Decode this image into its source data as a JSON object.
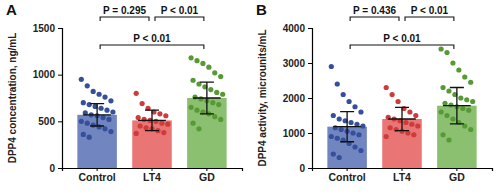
{
  "chart_data": [
    {
      "type": "bar",
      "title": "A",
      "y_label": "DPP4 concentration, ng/mL",
      "categories": [
        "Control",
        "LT4",
        "GD"
      ],
      "values": [
        570,
        510,
        750
      ],
      "error": [
        120,
        110,
        170
      ],
      "colors": [
        "#3a56a8",
        "#e0403f",
        "#5fa83a"
      ],
      "points": [
        [
          950,
          880,
          820,
          790,
          760,
          720,
          700,
          680,
          660,
          640,
          620,
          600,
          590,
          570,
          560,
          540,
          520,
          500,
          480,
          460,
          440,
          420,
          390,
          360,
          330
        ],
        [
          800,
          690,
          640,
          600,
          580,
          560,
          540,
          520,
          510,
          500,
          480,
          470,
          450,
          430,
          420,
          400,
          380,
          370
        ],
        [
          1180,
          1150,
          1120,
          1080,
          1020,
          980,
          940,
          900,
          870,
          840,
          810,
          790,
          760,
          740,
          720,
          700,
          680,
          650,
          620,
          600,
          580,
          550,
          520,
          480,
          420
        ]
      ],
      "ylim": [
        0,
        1500
      ],
      "yticks": [
        0,
        500,
        1000,
        1500
      ],
      "annotations": [
        {
          "text": "P = 0.295",
          "between": [
            "Control",
            "LT4"
          ]
        },
        {
          "text": "P < 0.01",
          "between": [
            "LT4",
            "GD"
          ]
        },
        {
          "text": "P < 0.01",
          "between": [
            "Control",
            "GD"
          ]
        }
      ]
    },
    {
      "type": "bar",
      "title": "B",
      "y_label": "DPP4 activity, microunits/mL",
      "categories": [
        "Control",
        "LT4",
        "GD"
      ],
      "values": [
        1180,
        1400,
        1780
      ],
      "error": [
        430,
        330,
        520
      ],
      "colors": [
        "#3a56a8",
        "#e0403f",
        "#5fa83a"
      ],
      "points": [
        [
          2900,
          2400,
          2100,
          1900,
          1750,
          1600,
          1500,
          1400,
          1350,
          1300,
          1250,
          1200,
          1150,
          1100,
          1050,
          1000,
          950,
          900,
          850,
          800,
          700,
          600,
          500,
          400,
          300
        ],
        [
          2300,
          2100,
          1900,
          1700,
          1600,
          1500,
          1450,
          1400,
          1350,
          1300,
          1250,
          1200,
          1150,
          1100,
          1050,
          1000,
          950,
          900
        ],
        [
          3400,
          3300,
          3000,
          2800,
          2600,
          2450,
          2300,
          2200,
          2100,
          2000,
          1950,
          1900,
          1850,
          1800,
          1750,
          1700,
          1650,
          1600,
          1500,
          1400,
          1300,
          1200,
          1100,
          950,
          800
        ]
      ],
      "ylim": [
        0,
        4000
      ],
      "yticks": [
        0,
        1000,
        2000,
        3000,
        4000
      ],
      "annotations": [
        {
          "text": "P = 0.436",
          "between": [
            "Control",
            "LT4"
          ]
        },
        {
          "text": "P < 0.01",
          "between": [
            "LT4",
            "GD"
          ]
        },
        {
          "text": "P < 0.01",
          "between": [
            "Control",
            "GD"
          ]
        }
      ]
    }
  ]
}
